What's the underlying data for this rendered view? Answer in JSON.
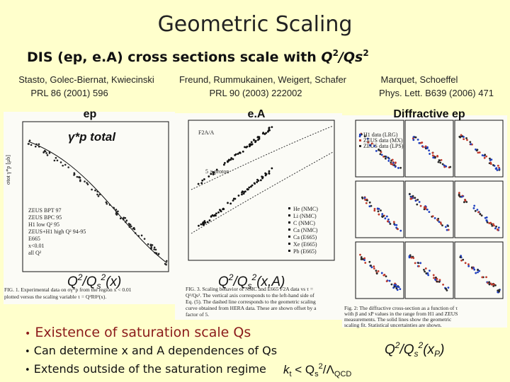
{
  "title": "Geometric Scaling",
  "subtitle": [
    "DIS (ep, e.A) cross sections scale with ",
    "Q",
    "2",
    "/Qs",
    "2"
  ],
  "references": [
    {
      "authors": "Stasto, Golec-Biernat, Kwiecinski",
      "journal": "PRL 86 (2001) 596",
      "panel": "ep"
    },
    {
      "authors": "Freund, Rummukainen, Weigert, Schafer",
      "journal": "PRL 90 (2003) 222002",
      "panel": "e.A"
    },
    {
      "authors": "Marquet, Schoeffel",
      "journal": "Phys. Lett. B639 (2006) 471",
      "panel": "Diffractive ep"
    }
  ],
  "annotations": {
    "gamma_p": "γ*p total",
    "ep_scaling": [
      "Q",
      "2",
      "/Q",
      "s",
      "2",
      "(x)"
    ],
    "ea_scaling": [
      "Q",
      "2",
      "/Q",
      "s",
      "2",
      "(x,A)"
    ],
    "diff_scaling": [
      "Q",
      "2",
      "/Q",
      "s",
      "2",
      "(x",
      "P",
      ")"
    ]
  },
  "plots": {
    "ep": {
      "y_label": "σtot γ*p [μb]",
      "legend": [
        "ZEUS BPT 97",
        "ZEUS BPC 95",
        "H1 low Q² 95",
        "ZEUS+H1 high Q² 94-95",
        "E665",
        "x<0.01",
        "all Q²"
      ],
      "caption": [
        "FIG. 1.  Experimental data on σγ*p from the region x < 0.01",
        "plotted versus the scaling variable τ = Q²R0²(x)."
      ]
    },
    "ea": {
      "y_label": "F2A/A",
      "offset_label": "5 × proton",
      "legend": [
        "He (NMC)",
        "Li (NMC)",
        "C (NMC)",
        "Ca (NMC)",
        "Ca (E665)",
        "Xe (E665)",
        "Pb (E665)"
      ],
      "caption": [
        "FIG. 3.  Scaling behavior of NMC and E665 F2A data vs τ =",
        "Q²/Qs². The vertical axis corresponds to the left-hand side of",
        "Eq. (5). The dashed line corresponds to the geometric scaling",
        "curve obtained from HERA data. These are shown offset by a",
        "factor of 5."
      ]
    },
    "diff": {
      "legend": [
        "H1 data (LRG)",
        "ZEUS data (MX)",
        "ZEUS data (LPS)"
      ],
      "caption": [
        "Fig. 2: The diffractive cross-section as a function of τ",
        "with β and xP values in the range from H1 and ZEUS",
        "measurements. The solid lines show the geometric",
        "scaling fit. Statistical uncertainties are shown."
      ]
    }
  },
  "bullets": [
    "Existence of saturation scale Qs",
    "Can determine x and A dependences of Qs",
    "Extends outside of the saturation regime"
  ],
  "formula": [
    "k",
    "t",
    " < Q",
    "s",
    "2",
    "/Λ",
    "QCD"
  ]
}
